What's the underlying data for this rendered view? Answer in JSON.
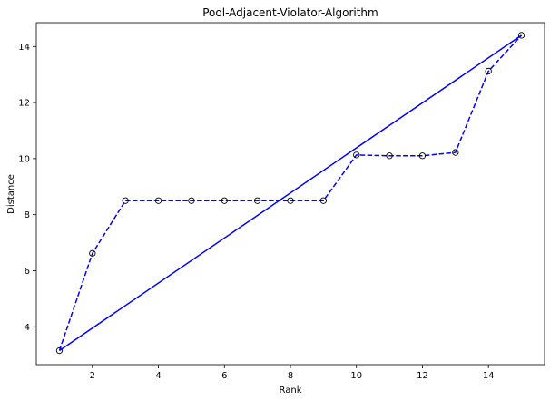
{
  "chart_data": {
    "type": "line",
    "title": "Pool-Adjacent-Violator-Algorithm",
    "xlabel": "Rank",
    "ylabel": "Distance",
    "xlim": [
      0.3,
      15.7
    ],
    "ylim": [
      2.65,
      14.85
    ],
    "xticks": [
      2,
      4,
      6,
      8,
      10,
      12,
      14
    ],
    "yticks": [
      4,
      6,
      8,
      10,
      12,
      14
    ],
    "grid": false,
    "series": [
      {
        "style": "dashed-with-circle-markers",
        "color": "#0000ff",
        "marker_color": "#000000",
        "x": [
          1,
          2,
          3,
          4,
          5,
          6,
          7,
          8,
          9,
          10,
          11,
          12,
          13,
          14,
          15
        ],
        "y": [
          3.15,
          6.62,
          8.5,
          8.5,
          8.5,
          8.5,
          8.5,
          8.5,
          8.5,
          10.13,
          10.1,
          10.1,
          10.22,
          13.12,
          14.4
        ]
      },
      {
        "style": "solid",
        "color": "#0000ff",
        "x": [
          1,
          15
        ],
        "y": [
          3.15,
          14.4
        ]
      }
    ]
  }
}
